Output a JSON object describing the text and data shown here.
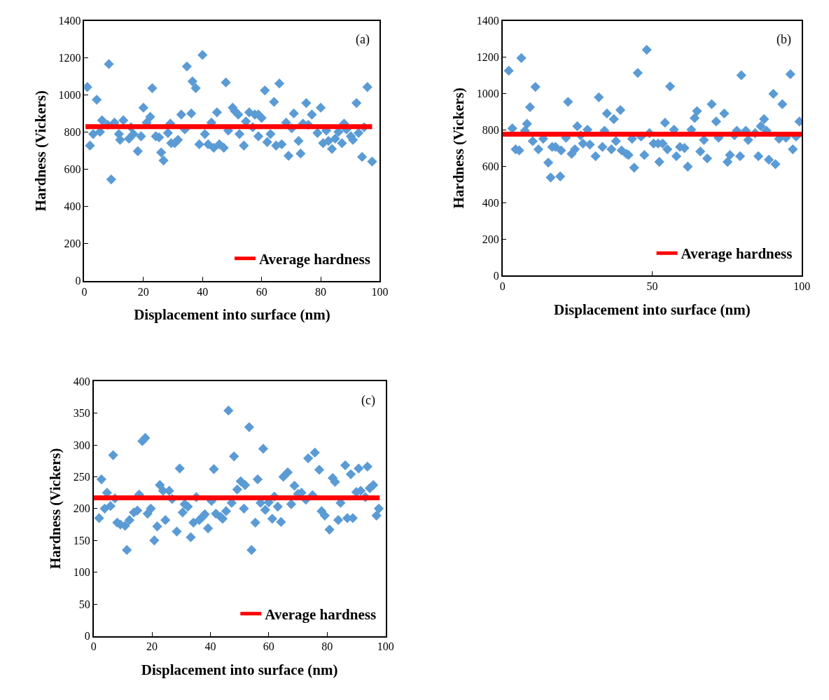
{
  "chart_data": [
    {
      "type": "scatter",
      "xlabel": "Displacement into surface (nm)",
      "ylabel": "Hardness (Vickers)",
      "annotations": [
        "(a)"
      ],
      "xlim": [
        0,
        100
      ],
      "xticks": [
        0,
        20,
        40,
        60,
        80,
        100
      ],
      "ylim": [
        0,
        1400
      ],
      "yticks": [
        0,
        200,
        400,
        600,
        800,
        1000,
        1200,
        1400
      ],
      "legend": "bottom right",
      "series": [
        {
          "marker": "diamond",
          "color": "#5b9bd5",
          "x": [
            1.0,
            1.9,
            3.0,
            4.2,
            5.3,
            6.0,
            7.9,
            8.3,
            9.1,
            10.2,
            11.7,
            12.1,
            13.2,
            15.1,
            15.8,
            16.6,
            18.1,
            19.2,
            20.0,
            21.1,
            22.3,
            23.0,
            24.2,
            25.3,
            26.0,
            26.8,
            28.3,
            29.1,
            29.4,
            30.6,
            31.7,
            32.8,
            34.0,
            34.7,
            36.2,
            36.6,
            37.7,
            38.9,
            40.0,
            40.8,
            41.9,
            43.0,
            43.8,
            44.9,
            45.7,
            47.2,
            47.9,
            48.7,
            50.2,
            50.9,
            52.1,
            52.5,
            54.0,
            54.7,
            55.8,
            57.0,
            57.7,
            58.9,
            58.9,
            60.0,
            61.1,
            61.9,
            63.0,
            64.2,
            64.9,
            66.0,
            66.8,
            68.3,
            69.1,
            70.2,
            70.9,
            72.5,
            73.2,
            74.0,
            75.1,
            75.8,
            77.0,
            78.9,
            80.0,
            80.8,
            81.9,
            82.6,
            83.8,
            84.9,
            86.0,
            87.2,
            87.9,
            88.7,
            90.2,
            90.9,
            92.1,
            92.8,
            94.0,
            94.7,
            95.8,
            97.4
          ],
          "values": [
            1043,
            728,
            790,
            975,
            802,
            864,
            840,
            1167,
            546,
            852,
            790,
            759,
            864,
            765,
            827,
            790,
            698,
            778,
            932,
            852,
            883,
            1037,
            778,
            772,
            691,
            648,
            796,
            846,
            741,
            741,
            759,
            895,
            815,
            1154,
            901,
            1074,
            1037,
            735,
            1216,
            790,
            735,
            852,
            716,
            907,
            735,
            716,
            1068,
            809,
            932,
            914,
            895,
            790,
            728,
            858,
            907,
            827,
            895,
            895,
            778,
            877,
            1025,
            747,
            790,
            963,
            728,
            1062,
            735,
            852,
            673,
            821,
            901,
            753,
            685,
            846,
            957,
            840,
            895,
            796,
            932,
            741,
            809,
            753,
            710,
            765,
            802,
            741,
            846,
            815,
            778,
            759,
            957,
            796,
            667,
            827,
            1043,
            642
          ]
        },
        {
          "type": "line",
          "name": "Average hardness",
          "color": "#ff0000",
          "x": [
            0.4,
            97.4
          ],
          "values": [
            830,
            830
          ]
        }
      ]
    },
    {
      "type": "scatter",
      "xlabel": "Displacement into surface (nm)",
      "ylabel": "Hardness (Vickers)",
      "annotations": [
        "(b)"
      ],
      "xlim": [
        0,
        100
      ],
      "xticks": [
        0,
        50,
        100
      ],
      "ylim": [
        0,
        1400
      ],
      "yticks": [
        0,
        200,
        400,
        600,
        800,
        1000,
        1200,
        1400
      ],
      "legend": "bottom right",
      "series": [
        {
          "marker": "diamond",
          "color": "#5b9bd5",
          "x": [
            2.1,
            3.3,
            4.4,
            5.6,
            6.3,
            7.5,
            8.2,
            9.2,
            10.1,
            11.0,
            12.0,
            13.6,
            15.3,
            16.1,
            16.6,
            17.7,
            19.3,
            19.6,
            21.2,
            21.9,
            23.1,
            24.2,
            25.0,
            26.1,
            26.9,
            28.4,
            29.2,
            31.1,
            32.2,
            33.4,
            34.1,
            34.9,
            36.4,
            37.2,
            37.9,
            39.4,
            39.8,
            41.4,
            42.1,
            43.3,
            44.0,
            45.2,
            46.3,
            47.4,
            48.2,
            49.1,
            50.5,
            52.0,
            52.4,
            53.5,
            54.3,
            55.1,
            56.0,
            57.3,
            58.1,
            59.3,
            60.8,
            61.9,
            63.1,
            64.2,
            65.0,
            66.1,
            67.3,
            68.4,
            69.9,
            71.4,
            72.2,
            74.1,
            75.2,
            76.0,
            77.5,
            78.3,
            79.4,
            79.8,
            81.3,
            82.1,
            84.4,
            85.5,
            86.3,
            87.4,
            88.2,
            89.0,
            90.5,
            91.2,
            92.4,
            93.5,
            94.7,
            96.2,
            97.0,
            98.1,
            99.2
          ],
          "values": [
            1125,
            808,
            693,
            687,
            1195,
            795,
            833,
            925,
            738,
            1036,
            693,
            751,
            620,
            538,
            706,
            706,
            544,
            687,
            757,
            954,
            668,
            693,
            820,
            770,
            725,
            801,
            719,
            655,
            979,
            706,
            795,
            890,
            693,
            859,
            738,
            909,
            687,
            668,
            662,
            751,
            592,
            1113,
            763,
            662,
            1240,
            782,
            725,
            725,
            624,
            725,
            839,
            693,
            1039,
            801,
            655,
            706,
            700,
            598,
            801,
            865,
            903,
            681,
            744,
            643,
            941,
            846,
            757,
            890,
            624,
            662,
            770,
            795,
            655,
            1100,
            795,
            744,
            782,
            655,
            820,
            859,
            795,
            636,
            998,
            611,
            751,
            941,
            757,
            1106,
            693,
            763,
            846
          ]
        },
        {
          "type": "line",
          "name": "Average hardness",
          "color": "#ff0000",
          "x": [
            0,
            100
          ],
          "values": [
            776,
            776
          ]
        }
      ]
    },
    {
      "type": "scatter",
      "xlabel": "Displacement into surface (nm)",
      "ylabel": "Hardness (Vickers)",
      "annotations": [
        "(c)"
      ],
      "xlim": [
        0,
        100
      ],
      "xticks": [
        0,
        20,
        40,
        60,
        80,
        100
      ],
      "ylim": [
        0,
        400
      ],
      "yticks": [
        0,
        50,
        100,
        150,
        200,
        250,
        300,
        350,
        400
      ],
      "legend": "bottom right",
      "series": [
        {
          "marker": "diamond",
          "color": "#5b9bd5",
          "x": [
            1.9,
            2.7,
            3.8,
            4.6,
            5.8,
            6.7,
            7.3,
            8.1,
            9.2,
            10.8,
            11.4,
            12.3,
            13.8,
            15.0,
            15.6,
            16.7,
            17.7,
            18.5,
            19.6,
            20.8,
            21.8,
            22.7,
            23.8,
            24.6,
            25.9,
            26.9,
            28.5,
            29.5,
            30.5,
            31.2,
            32.3,
            33.3,
            34.2,
            35.2,
            36.2,
            37.3,
            38.1,
            39.2,
            40.4,
            41.2,
            41.9,
            43.5,
            44.2,
            45.4,
            46.2,
            47.3,
            48.1,
            49.2,
            50.4,
            51.5,
            51.9,
            53.3,
            54.1,
            55.4,
            56.2,
            57.2,
            58.1,
            58.8,
            60.0,
            61.2,
            61.9,
            63.1,
            64.2,
            65.0,
            66.5,
            67.7,
            68.8,
            70.0,
            71.2,
            72.7,
            73.5,
            75.0,
            75.8,
            77.3,
            78.1,
            79.2,
            80.8,
            81.9,
            82.7,
            83.8,
            84.6,
            86.2,
            86.9,
            88.1,
            88.8,
            90.0,
            90.8,
            91.5,
            93.1,
            93.8,
            94.6,
            95.8,
            96.9,
            97.7
          ],
          "values": [
            185,
            246,
            200,
            225,
            204,
            284,
            216,
            178,
            175,
            173,
            135,
            182,
            194,
            197,
            222,
            306,
            311,
            192,
            200,
            150,
            172,
            237,
            228,
            182,
            228,
            215,
            164,
            263,
            194,
            207,
            203,
            155,
            178,
            218,
            182,
            187,
            191,
            169,
            212,
            262,
            192,
            187,
            184,
            196,
            354,
            209,
            282,
            230,
            243,
            200,
            237,
            328,
            135,
            178,
            246,
            209,
            294,
            198,
            210,
            184,
            219,
            203,
            179,
            250,
            257,
            207,
            236,
            223,
            225,
            214,
            279,
            221,
            288,
            261,
            196,
            189,
            167,
            248,
            242,
            182,
            209,
            268,
            185,
            254,
            185,
            226,
            263,
            228,
            218,
            266,
            232,
            237,
            189,
            200
          ]
        },
        {
          "type": "line",
          "name": "Average hardness",
          "color": "#ff0000",
          "x": [
            0,
            98
          ],
          "values": [
            217,
            217
          ]
        }
      ]
    }
  ]
}
